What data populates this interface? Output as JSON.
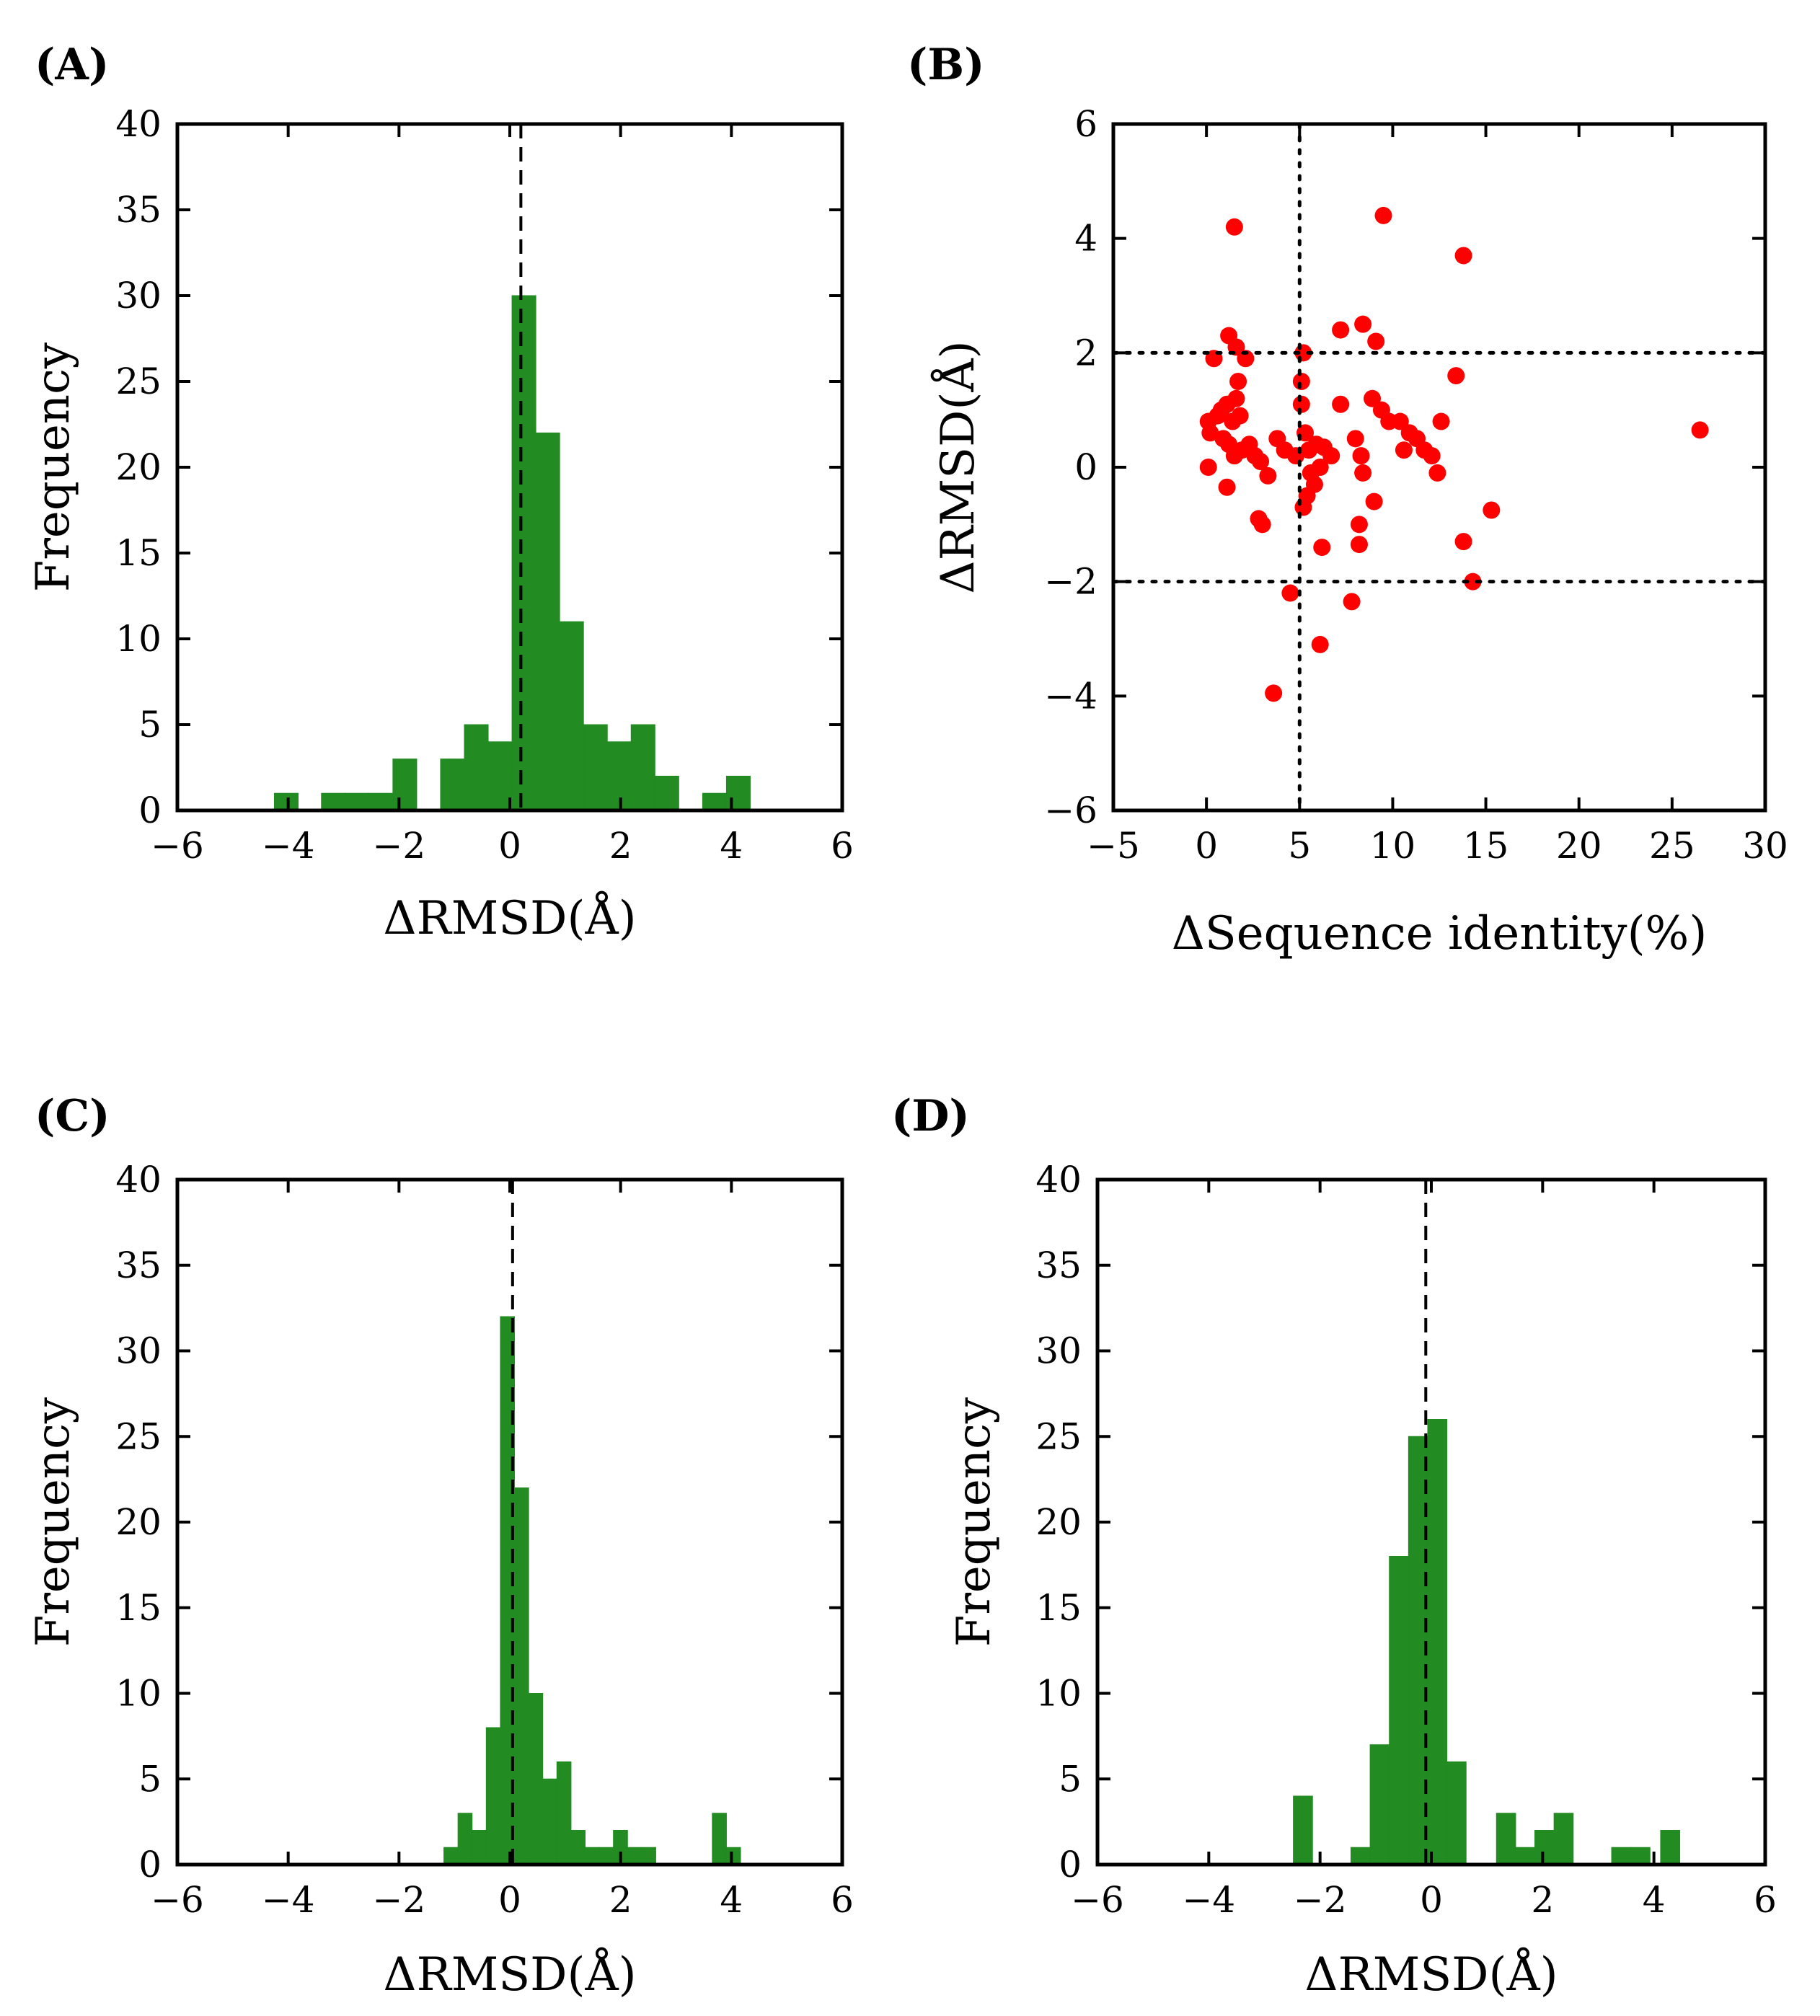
{
  "chart_data": [
    {
      "panel_label": "(A)",
      "type": "bar",
      "xlabel": "ΔRMSD(Å)",
      "ylabel": "Frequency",
      "xlim": [
        -6,
        6
      ],
      "ylim": [
        0,
        40
      ],
      "xticks": [
        -6,
        -4,
        -2,
        0,
        2,
        4,
        6
      ],
      "yticks": [
        0,
        5,
        10,
        15,
        20,
        25,
        30,
        35,
        40
      ],
      "reference_line": {
        "x": 0.2,
        "style": "dashed"
      },
      "color": "#228b22",
      "bin_width": 0.43,
      "bins": [
        {
          "left": -4.25,
          "count": 1
        },
        {
          "left": -3.4,
          "count": 1
        },
        {
          "left": -2.97,
          "count": 1
        },
        {
          "left": -2.54,
          "count": 1
        },
        {
          "left": -2.11,
          "count": 3
        },
        {
          "left": -1.68,
          "count": 0
        },
        {
          "left": -1.25,
          "count": 3
        },
        {
          "left": -0.82,
          "count": 5
        },
        {
          "left": -0.39,
          "count": 4
        },
        {
          "left": 0.04,
          "count": 30
        },
        {
          "left": 0.47,
          "count": 22
        },
        {
          "left": 0.9,
          "count": 11
        },
        {
          "left": 1.33,
          "count": 5
        },
        {
          "left": 1.76,
          "count": 4
        },
        {
          "left": 2.19,
          "count": 5
        },
        {
          "left": 2.62,
          "count": 2
        },
        {
          "left": 3.48,
          "count": 1
        },
        {
          "left": 3.91,
          "count": 2
        }
      ]
    },
    {
      "panel_label": "(B)",
      "type": "scatter",
      "xlabel": "ΔSequence identity(%)",
      "ylabel": "ΔRMSD(Å)",
      "xlim": [
        -5,
        30
      ],
      "ylim": [
        -6,
        6
      ],
      "xticks": [
        -5,
        0,
        5,
        10,
        15,
        20,
        25,
        30
      ],
      "yticks": [
        -6,
        -4,
        -2,
        0,
        2,
        4,
        6
      ],
      "reference_lines": [
        {
          "axis": "x",
          "value": 5,
          "style": "dotted"
        },
        {
          "axis": "y",
          "value": 2,
          "style": "dotted"
        },
        {
          "axis": "y",
          "value": -2,
          "style": "dotted"
        }
      ],
      "color": "#ff0000",
      "points": [
        [
          1.5,
          4.2
        ],
        [
          9.5,
          4.4
        ],
        [
          13.8,
          3.7
        ],
        [
          1.2,
          2.3
        ],
        [
          1.6,
          2.1
        ],
        [
          2.1,
          1.9
        ],
        [
          0.4,
          1.9
        ],
        [
          7.2,
          2.4
        ],
        [
          8.4,
          2.5
        ],
        [
          9.1,
          2.2
        ],
        [
          5.2,
          2.0
        ],
        [
          5.1,
          1.5
        ],
        [
          1.7,
          1.5
        ],
        [
          13.4,
          1.6
        ],
        [
          0.1,
          0.8
        ],
        [
          0.2,
          0.6
        ],
        [
          0.6,
          0.9
        ],
        [
          0.8,
          1.0
        ],
        [
          1.1,
          1.1
        ],
        [
          1.4,
          0.8
        ],
        [
          1.6,
          1.2
        ],
        [
          1.8,
          0.9
        ],
        [
          0.9,
          0.5
        ],
        [
          1.2,
          0.4
        ],
        [
          1.5,
          0.2
        ],
        [
          1.9,
          0.3
        ],
        [
          2.3,
          0.4
        ],
        [
          2.6,
          0.2
        ],
        [
          0.1,
          0.0
        ],
        [
          1.1,
          -0.35
        ],
        [
          2.9,
          0.1
        ],
        [
          3.3,
          -0.15
        ],
        [
          3.8,
          0.5
        ],
        [
          4.2,
          0.3
        ],
        [
          4.8,
          0.2
        ],
        [
          5.1,
          1.1
        ],
        [
          5.3,
          0.6
        ],
        [
          5.5,
          0.3
        ],
        [
          5.9,
          0.4
        ],
        [
          6.3,
          0.35
        ],
        [
          6.7,
          0.2
        ],
        [
          5.6,
          -0.1
        ],
        [
          5.4,
          -0.5
        ],
        [
          5.8,
          -0.3
        ],
        [
          6.1,
          0.0
        ],
        [
          5.2,
          -0.7
        ],
        [
          7.2,
          1.1
        ],
        [
          8.0,
          0.5
        ],
        [
          8.3,
          0.2
        ],
        [
          8.4,
          -0.1
        ],
        [
          9.0,
          -0.6
        ],
        [
          8.9,
          1.2
        ],
        [
          9.4,
          1.0
        ],
        [
          9.8,
          0.8
        ],
        [
          10.4,
          0.8
        ],
        [
          10.9,
          0.6
        ],
        [
          11.3,
          0.5
        ],
        [
          11.7,
          0.3
        ],
        [
          12.1,
          0.2
        ],
        [
          10.6,
          0.3
        ],
        [
          12.6,
          0.8
        ],
        [
          12.4,
          -0.1
        ],
        [
          8.2,
          -1.0
        ],
        [
          8.2,
          -1.35
        ],
        [
          2.8,
          -0.9
        ],
        [
          3.0,
          -1.0
        ],
        [
          6.2,
          -1.4
        ],
        [
          13.8,
          -1.3
        ],
        [
          15.3,
          -0.75
        ],
        [
          4.5,
          -2.2
        ],
        [
          7.8,
          -2.35
        ],
        [
          14.3,
          -2.0
        ],
        [
          6.1,
          -3.1
        ],
        [
          3.6,
          -3.95
        ],
        [
          26.5,
          0.65
        ]
      ]
    },
    {
      "panel_label": "(C)",
      "type": "bar",
      "xlabel": "ΔRMSD(Å)",
      "ylabel": "Frequency",
      "xlim": [
        -6,
        6
      ],
      "ylim": [
        0,
        40
      ],
      "xticks": [
        -6,
        -4,
        -2,
        0,
        2,
        4,
        6
      ],
      "yticks": [
        0,
        5,
        10,
        15,
        20,
        25,
        30,
        35,
        40
      ],
      "reference_line": {
        "x": 0.05,
        "style": "dashed"
      },
      "color": "#228b22",
      "bin_width": 0.255,
      "bins": [
        {
          "left": -1.19,
          "count": 1
        },
        {
          "left": -0.935,
          "count": 3
        },
        {
          "left": -0.68,
          "count": 2
        },
        {
          "left": -0.425,
          "count": 8
        },
        {
          "left": -0.17,
          "count": 32
        },
        {
          "left": 0.085,
          "count": 22
        },
        {
          "left": 0.34,
          "count": 10
        },
        {
          "left": 0.595,
          "count": 5
        },
        {
          "left": 0.85,
          "count": 6
        },
        {
          "left": 1.105,
          "count": 2
        },
        {
          "left": 1.36,
          "count": 1
        },
        {
          "left": 1.615,
          "count": 1
        },
        {
          "left": 1.87,
          "count": 2
        },
        {
          "left": 2.125,
          "count": 1
        },
        {
          "left": 2.38,
          "count": 1
        },
        {
          "left": 3.655,
          "count": 3
        },
        {
          "left": 3.91,
          "count": 1
        }
      ]
    },
    {
      "panel_label": "(D)",
      "type": "bar",
      "xlabel": "ΔRMSD(Å)",
      "ylabel": "Frequency",
      "xlim": [
        -6,
        6
      ],
      "ylim": [
        0,
        40
      ],
      "xticks": [
        -6,
        -4,
        -2,
        0,
        2,
        4,
        6
      ],
      "yticks": [
        0,
        5,
        10,
        15,
        20,
        25,
        30,
        35,
        40
      ],
      "reference_line": {
        "x": -0.1,
        "style": "dashed"
      },
      "color": "#228b22",
      "bin_width": 0.345,
      "bins": [
        {
          "left": -2.48,
          "count": 4
        },
        {
          "left": -2.135,
          "count": 0
        },
        {
          "left": -1.445,
          "count": 1
        },
        {
          "left": -1.1,
          "count": 7
        },
        {
          "left": -0.755,
          "count": 18
        },
        {
          "left": -0.41,
          "count": 25
        },
        {
          "left": -0.065,
          "count": 26
        },
        {
          "left": 0.28,
          "count": 6
        },
        {
          "left": 1.17,
          "count": 3
        },
        {
          "left": 1.515,
          "count": 1
        },
        {
          "left": 1.86,
          "count": 2
        },
        {
          "left": 2.205,
          "count": 3
        },
        {
          "left": 3.24,
          "count": 1
        },
        {
          "left": 3.585,
          "count": 1
        },
        {
          "left": 4.12,
          "count": 2
        }
      ]
    }
  ]
}
